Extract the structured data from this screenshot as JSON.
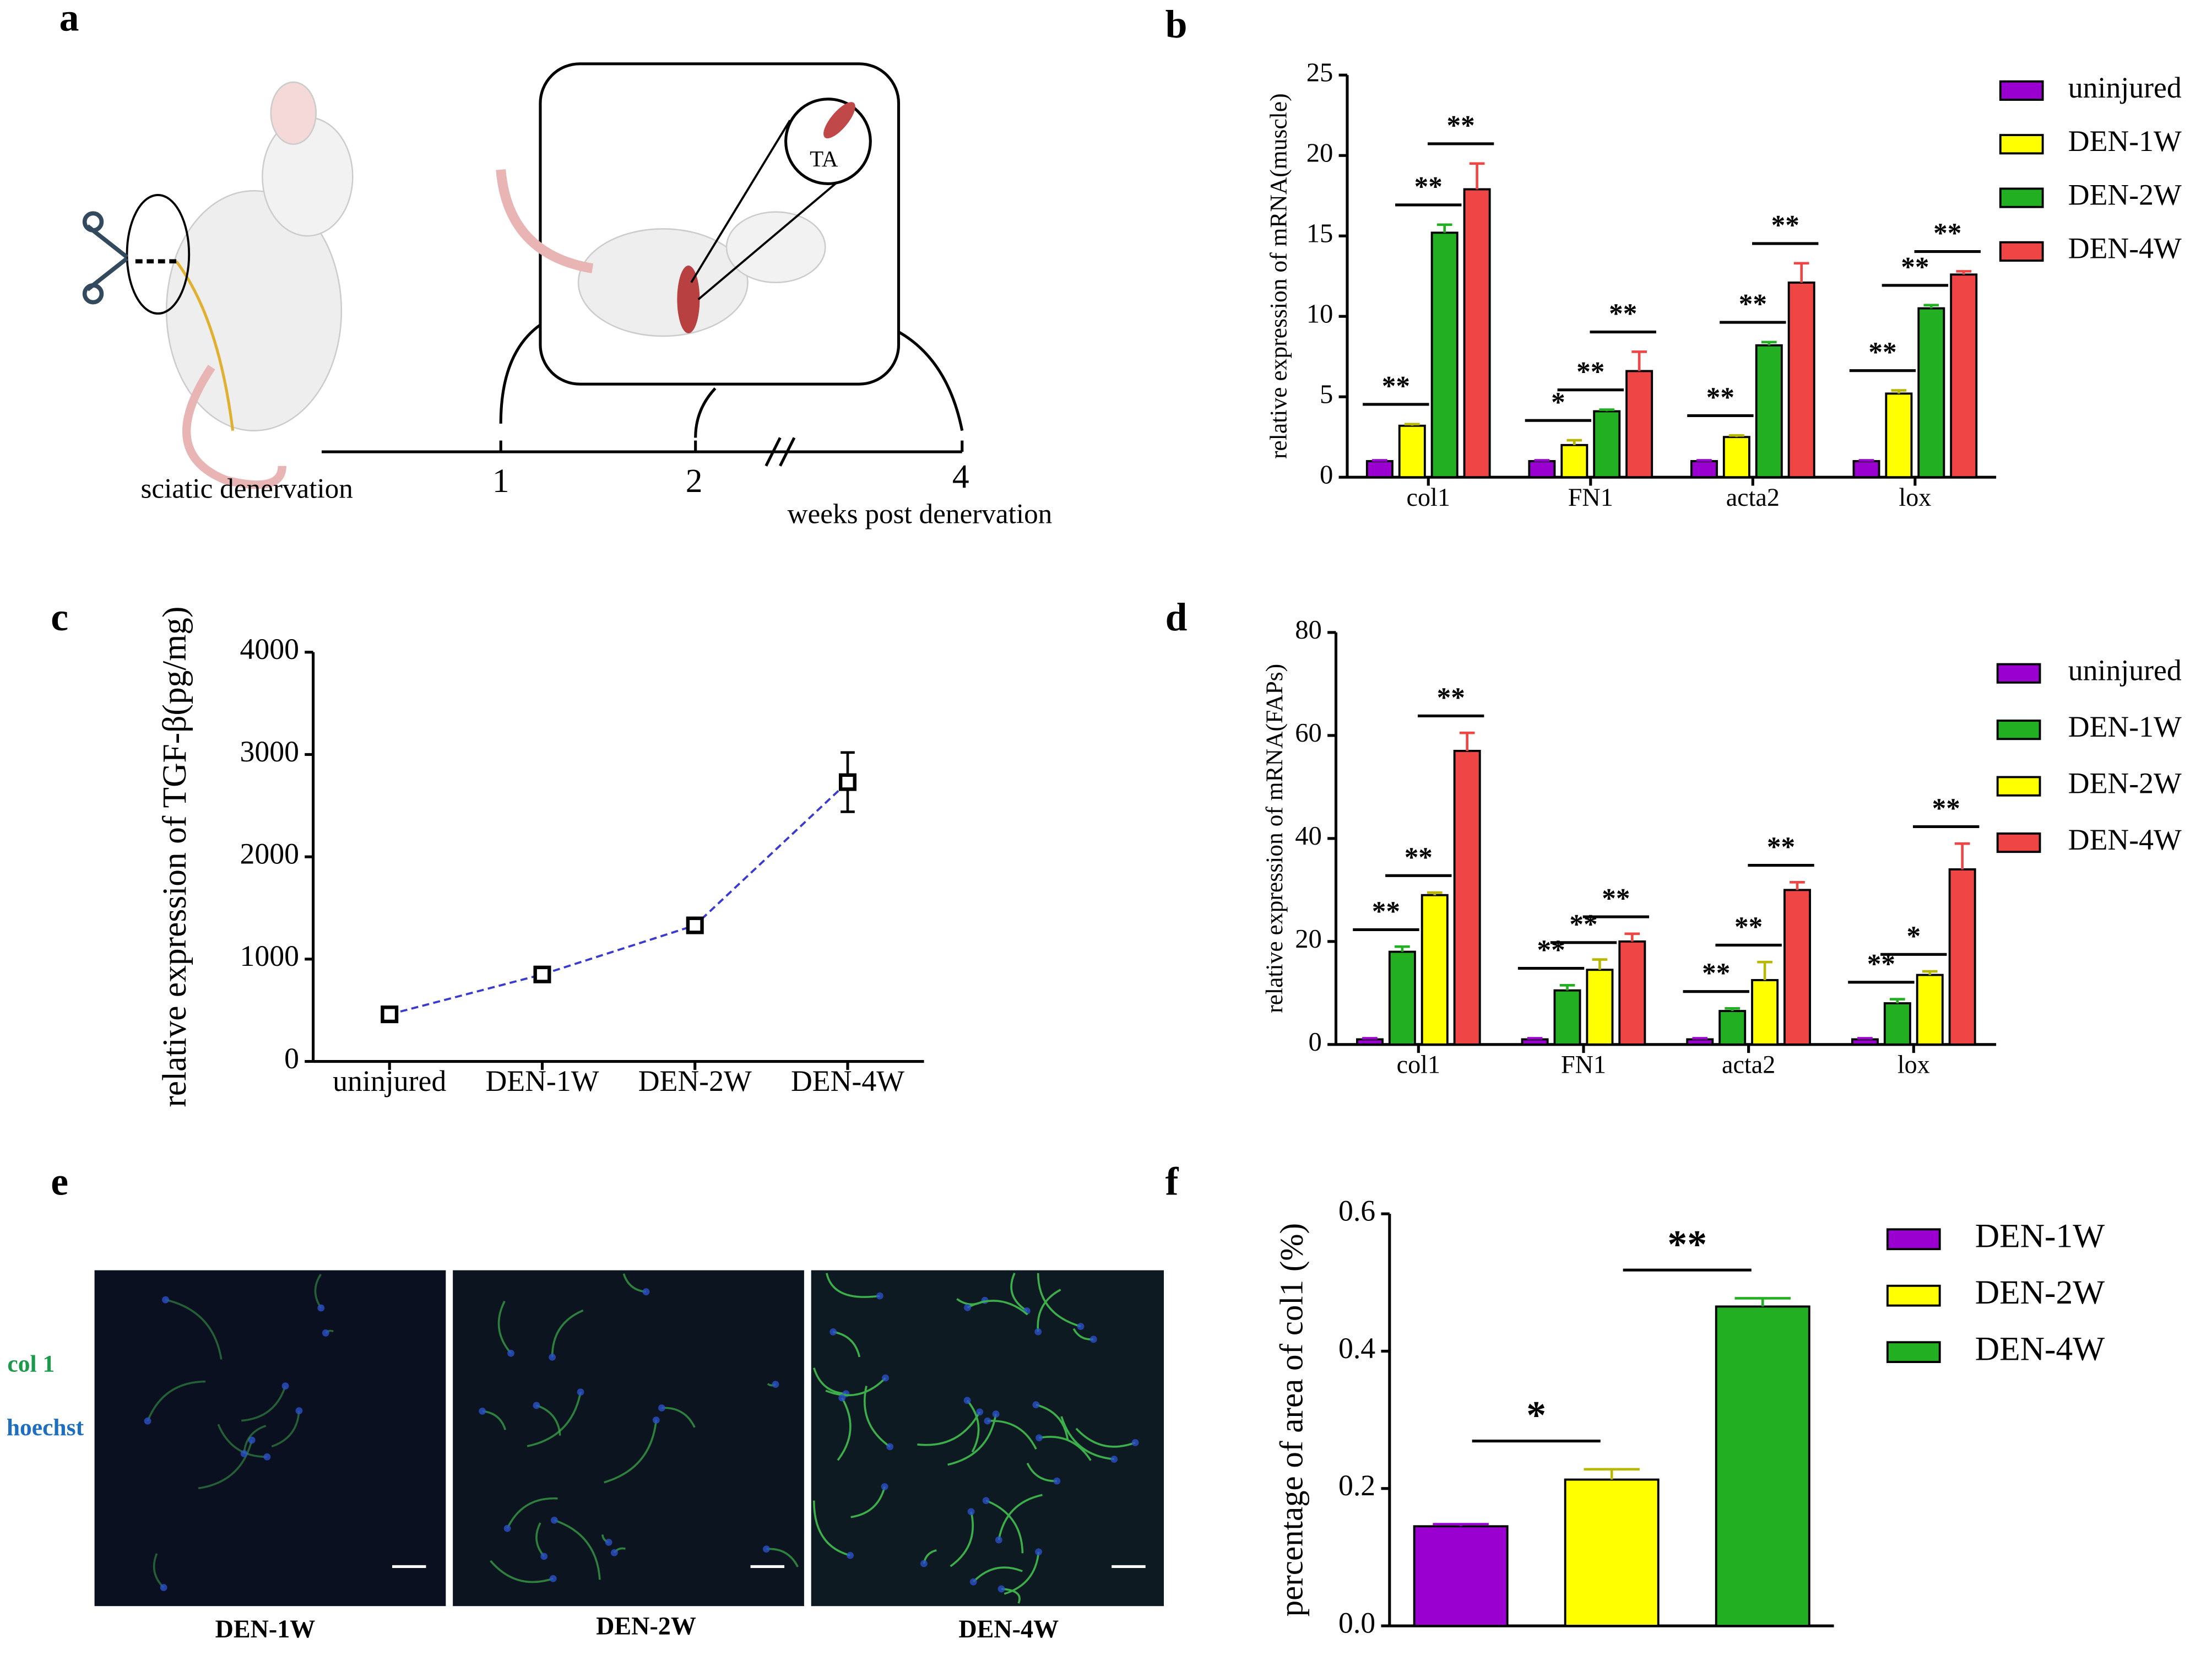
{
  "panel_labels": [
    "a",
    "b",
    "c",
    "d",
    "e",
    "f"
  ],
  "panel_a": {
    "start_label": "sciatic denervation",
    "timeline": [
      "1",
      "2",
      "4"
    ],
    "timeline_label": "weeks post denervation",
    "muscle_label": "TA"
  },
  "panel_e": {
    "stain_labels": [
      "col 1",
      "hoechst"
    ],
    "image_labels": [
      "DEN-1W",
      "DEN-2W",
      "DEN-4W"
    ]
  },
  "chart_data": [
    {
      "type": "bar",
      "ylabel": "relative  expression of mRNA(muscle)",
      "categories": [
        "col1",
        "FN1",
        "acta2",
        "lox"
      ],
      "series": [
        {
          "name": "uninjured",
          "color": "#9a00d0",
          "values": [
            1,
            1,
            1,
            1
          ],
          "errors": [
            0.05,
            0.05,
            0.05,
            0.05
          ]
        },
        {
          "name": "DEN-1W",
          "color": "#ffff00",
          "values": [
            3.2,
            2.0,
            2.5,
            5.2
          ],
          "errors": [
            0.1,
            0.3,
            0.1,
            0.2
          ]
        },
        {
          "name": "DEN-2W",
          "color": "#22b022",
          "values": [
            15.2,
            4.1,
            8.2,
            10.5
          ],
          "errors": [
            0.5,
            0.1,
            0.2,
            0.2
          ]
        },
        {
          "name": "DEN-4W",
          "color": "#f04545",
          "values": [
            17.9,
            6.6,
            12.1,
            12.6
          ],
          "errors": [
            1.6,
            1.2,
            1.2,
            0.2
          ]
        }
      ],
      "ylim": [
        0,
        25
      ],
      "yticks": [
        0,
        5,
        10,
        15,
        20,
        25
      ],
      "annotations": [
        [
          "**",
          "**",
          "**"
        ],
        [
          "*",
          "**",
          "**"
        ],
        [
          "**",
          "**",
          "**"
        ],
        [
          "**",
          "**",
          "**"
        ]
      ]
    },
    {
      "type": "line",
      "ylabel": "relative expression of TGF-β(pg/mg)",
      "categories": [
        "uninjured",
        "DEN-1W",
        "DEN-2W",
        "DEN-4W"
      ],
      "values": [
        460,
        850,
        1330,
        2730
      ],
      "errors": [
        30,
        20,
        30,
        290
      ],
      "color": "#3a3ad0",
      "ylim": [
        0,
        4000
      ],
      "yticks": [
        0,
        1000,
        2000,
        3000,
        4000
      ]
    },
    {
      "type": "bar",
      "ylabel": "relative  expression of mRNA(FAPs)",
      "categories": [
        "col1",
        "FN1",
        "acta2",
        "lox"
      ],
      "series": [
        {
          "name": "uninjured",
          "color": "#9a00d0",
          "values": [
            1,
            1,
            1,
            1
          ],
          "errors": [
            0.2,
            0.2,
            0.2,
            0.2
          ]
        },
        {
          "name": "DEN-1W",
          "color": "#22b022",
          "values": [
            18,
            10.5,
            6.5,
            8
          ],
          "errors": [
            1,
            1,
            0.5,
            0.8
          ]
        },
        {
          "name": "DEN-2W",
          "color": "#ffff00",
          "values": [
            29,
            14.5,
            12.5,
            13.5
          ],
          "errors": [
            0.5,
            2,
            3.5,
            0.7
          ]
        },
        {
          "name": "DEN-4W",
          "color": "#f04545",
          "values": [
            57,
            20,
            30,
            34
          ],
          "errors": [
            3.5,
            1.5,
            1.5,
            5
          ]
        }
      ],
      "ylim": [
        0,
        80
      ],
      "yticks": [
        0,
        20,
        40,
        60,
        80
      ],
      "annotations": [
        [
          "**",
          "**",
          "**"
        ],
        [
          "**",
          "**",
          "**"
        ],
        [
          "**",
          "**",
          "**"
        ],
        [
          "**",
          "*",
          "**"
        ]
      ]
    },
    {
      "type": "bar",
      "ylabel": "percentage of  area of col1 (%)",
      "series": [
        {
          "name": "DEN-1W",
          "color": "#9a00d0",
          "values": [
            0.145
          ],
          "errors": [
            0.003
          ]
        },
        {
          "name": "DEN-2W",
          "color": "#ffff00",
          "values": [
            0.213
          ],
          "errors": [
            0.015
          ]
        },
        {
          "name": "DEN-4W",
          "color": "#22b022",
          "values": [
            0.465
          ],
          "errors": [
            0.012
          ]
        }
      ],
      "ylim": [
        0,
        0.6
      ],
      "yticks": [
        {
          "value": 0,
          "label": "0.0"
        },
        0.2,
        0.4,
        0.6
      ],
      "annotations": [
        [
          "*",
          "**"
        ]
      ]
    }
  ]
}
